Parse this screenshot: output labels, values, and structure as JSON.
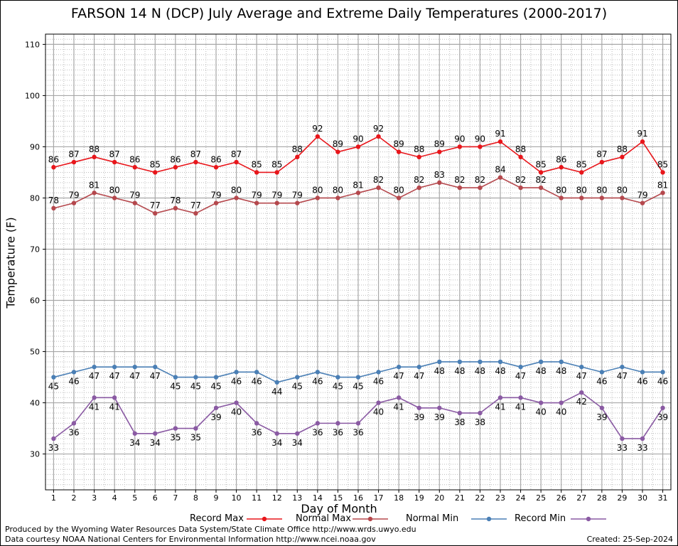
{
  "chart_data": {
    "type": "line",
    "title": "FARSON 14 N (DCP) July Average and Extreme Daily Temperatures (2000-2017)",
    "xlabel": "Day of Month",
    "ylabel": "Temperature (F)",
    "ylim": [
      23,
      112
    ],
    "xlim": [
      0.6,
      31.4
    ],
    "yticks": [
      30,
      40,
      50,
      60,
      70,
      80,
      90,
      100,
      110
    ],
    "x": [
      1,
      2,
      3,
      4,
      5,
      6,
      7,
      8,
      9,
      10,
      11,
      12,
      13,
      14,
      15,
      16,
      17,
      18,
      19,
      20,
      21,
      22,
      23,
      24,
      25,
      26,
      27,
      28,
      29,
      30,
      31
    ],
    "grid": true,
    "legend_position": "bottom",
    "series": [
      {
        "name": "Record Max",
        "color": "#e8161b",
        "values": [
          86,
          87,
          88,
          87,
          86,
          85,
          86,
          87,
          86,
          87,
          85,
          85,
          88,
          92,
          89,
          90,
          92,
          89,
          88,
          89,
          90,
          90,
          91,
          88,
          85,
          86,
          85,
          87,
          88,
          91,
          85
        ],
        "label_pos": "above"
      },
      {
        "name": "Normal Max",
        "color": "#b5484d",
        "values": [
          78,
          79,
          81,
          80,
          79,
          77,
          78,
          77,
          79,
          80,
          79,
          79,
          79,
          80,
          80,
          81,
          82,
          80,
          82,
          83,
          82,
          82,
          84,
          82,
          82,
          80,
          80,
          80,
          80,
          79,
          81
        ],
        "label_pos": "above"
      },
      {
        "name": "Normal Min",
        "color": "#4a7fb5",
        "values": [
          45,
          46,
          47,
          47,
          47,
          47,
          45,
          45,
          45,
          46,
          46,
          44,
          45,
          46,
          45,
          45,
          46,
          47,
          47,
          48,
          48,
          48,
          48,
          47,
          48,
          48,
          47,
          46,
          47,
          46,
          46
        ],
        "label_pos": "below"
      },
      {
        "name": "Record Min",
        "color": "#8a5aa3",
        "values": [
          33,
          36,
          41,
          41,
          34,
          34,
          35,
          35,
          39,
          40,
          36,
          34,
          34,
          36,
          36,
          36,
          40,
          41,
          39,
          39,
          38,
          38,
          41,
          41,
          40,
          40,
          42,
          39,
          33,
          33,
          39
        ],
        "label_pos": "below"
      }
    ]
  },
  "footer": {
    "line1": "Produced by the Wyoming Water Resources Data System/State Climate Office http://www.wrds.uwyo.edu",
    "line2": "Data courtesy NOAA National Centers for Environmental Information http://www.ncei.noaa.gov",
    "created": "Created:  25-Sep-2024"
  }
}
